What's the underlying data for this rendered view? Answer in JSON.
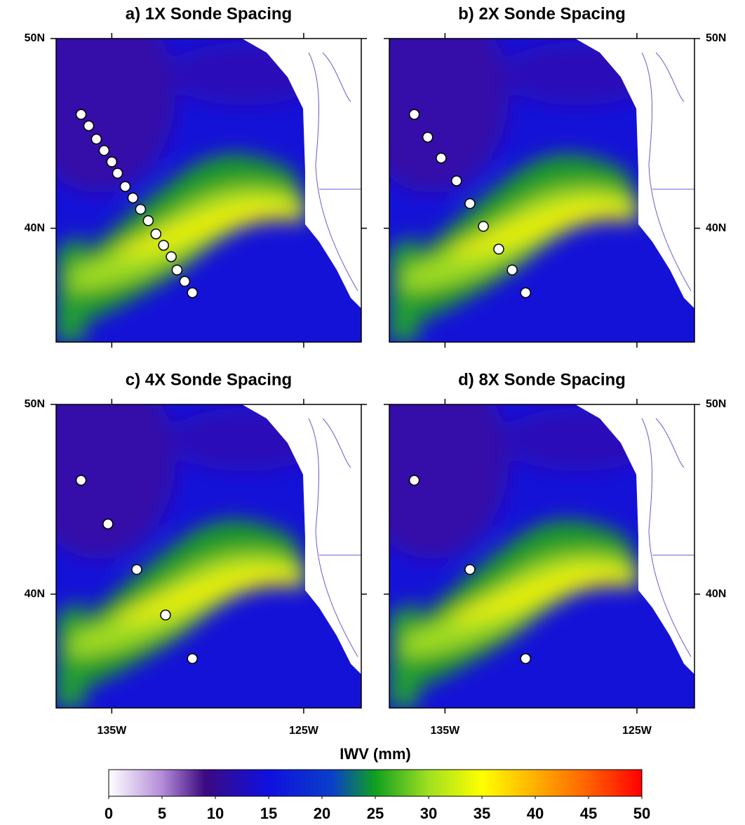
{
  "figure": {
    "panels": [
      {
        "title": "a) 1X Sonde Spacing",
        "sondes": {
          "lon": [
            -136.6,
            -136.2,
            -135.8,
            -135.4,
            -135.0,
            -134.7,
            -134.3,
            -133.9,
            -133.5,
            -133.1,
            -132.7,
            -132.3,
            -131.9,
            -131.6,
            -131.2,
            -130.8
          ],
          "lat": [
            46.0,
            45.4,
            44.7,
            44.1,
            43.5,
            42.9,
            42.2,
            41.6,
            41.0,
            40.4,
            39.7,
            39.1,
            38.5,
            37.8,
            37.2,
            36.6
          ]
        }
      },
      {
        "title": "b) 2X Sonde Spacing",
        "sondes": {
          "lon": [
            -136.6,
            -135.9,
            -135.2,
            -134.4,
            -133.7,
            -133.0,
            -132.2,
            -131.5,
            -130.8
          ],
          "lat": [
            46.0,
            44.8,
            43.7,
            42.5,
            41.3,
            40.1,
            38.9,
            37.8,
            36.6
          ]
        }
      },
      {
        "title": "c) 4X Sonde Spacing",
        "sondes": {
          "lon": [
            -136.6,
            -135.2,
            -133.7,
            -132.2,
            -130.8
          ],
          "lat": [
            46.0,
            43.7,
            41.3,
            38.9,
            36.6
          ]
        }
      },
      {
        "title": "d) 8X Sonde Spacing",
        "sondes": {
          "lon": [
            -136.6,
            -133.7,
            -130.8
          ],
          "lat": [
            46.0,
            41.3,
            36.6
          ]
        }
      }
    ],
    "lonlim": [
      -137.9,
      -122.0
    ],
    "latlim": [
      34.0,
      50.0
    ],
    "lon_ticks": [
      {
        "value": -135,
        "label": "135W"
      },
      {
        "value": -125,
        "label": "125W"
      }
    ],
    "lat_ticks": [
      {
        "value": 40,
        "label": "40N"
      },
      {
        "value": 50,
        "label": "50N"
      }
    ],
    "colorbar": {
      "title": "IWV (mm)",
      "range": [
        0,
        50
      ],
      "ticks": [
        0,
        5,
        10,
        15,
        20,
        25,
        30,
        35,
        40,
        45,
        50
      ]
    }
  }
}
